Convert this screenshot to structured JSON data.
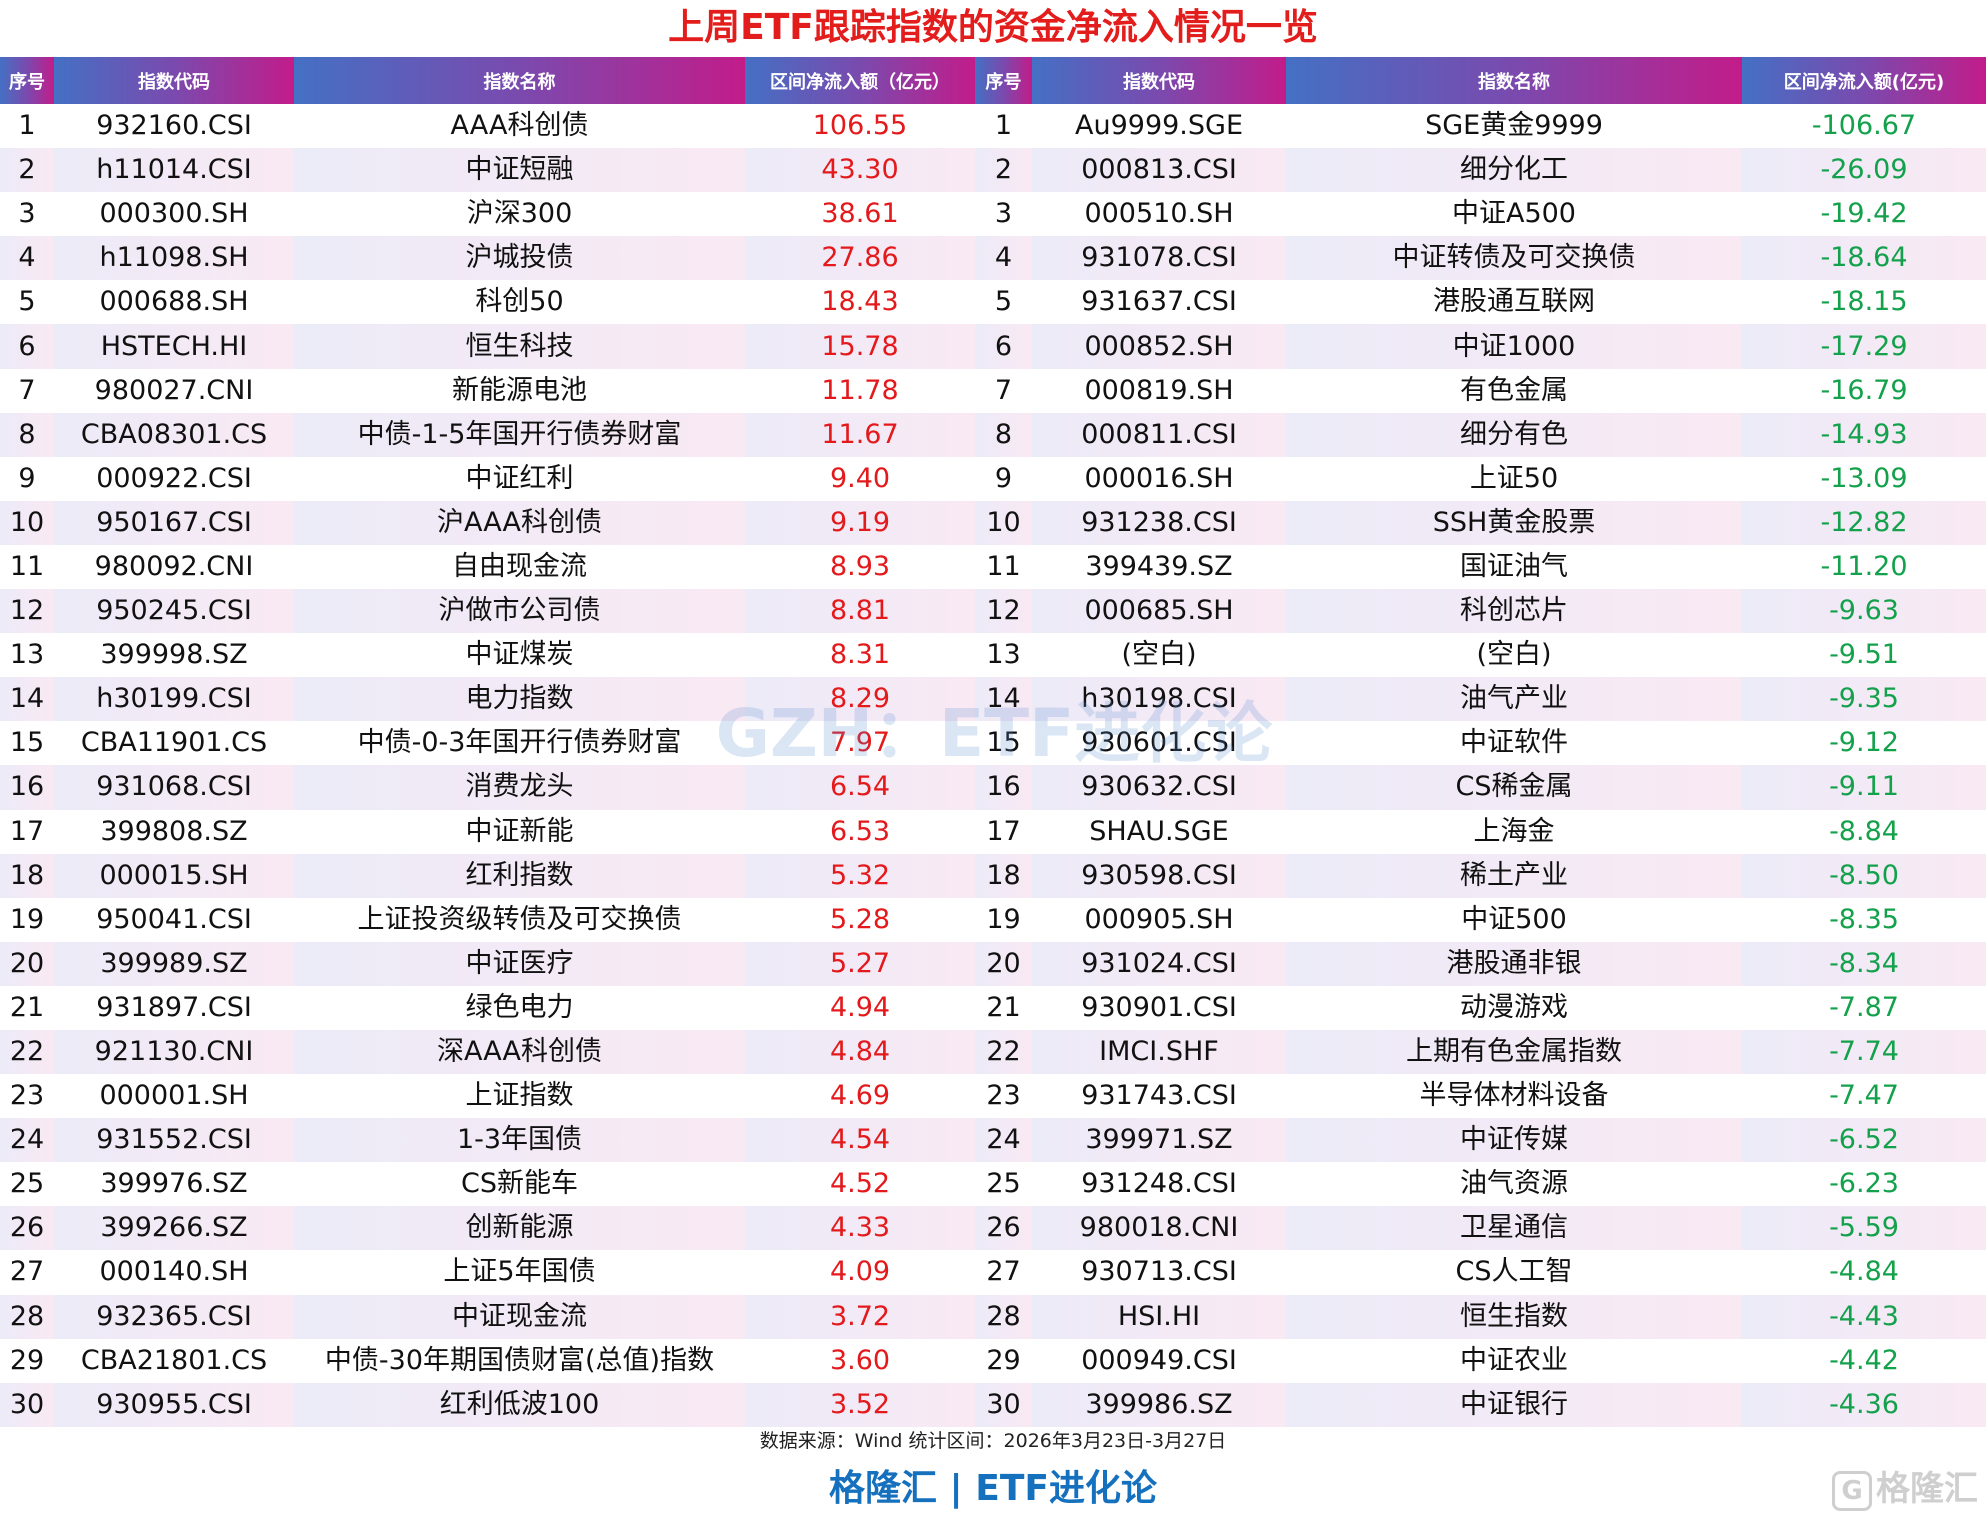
{
  "title": "上周ETF跟踪指数的资金净流入情况一览",
  "headers_left": [
    "序号",
    "指数代码",
    "指数名称",
    "区间净流入额（亿元）"
  ],
  "headers_right": [
    "序号",
    "指数代码",
    "指数名称",
    "区间净流入额(亿元)"
  ],
  "colors": {
    "positive": "#e3191c",
    "negative": "#13a14b",
    "title": "#e31c1c",
    "brand": "#1570bd"
  },
  "inflows": [
    {
      "rank": "1",
      "code": "932160.CSI",
      "name": "AAA科创债",
      "value": "106.55"
    },
    {
      "rank": "2",
      "code": "h11014.CSI",
      "name": "中证短融",
      "value": "43.30"
    },
    {
      "rank": "3",
      "code": "000300.SH",
      "name": "沪深300",
      "value": "38.61"
    },
    {
      "rank": "4",
      "code": "h11098.SH",
      "name": "沪城投债",
      "value": "27.86"
    },
    {
      "rank": "5",
      "code": "000688.SH",
      "name": "科创50",
      "value": "18.43"
    },
    {
      "rank": "6",
      "code": "HSTECH.HI",
      "name": "恒生科技",
      "value": "15.78"
    },
    {
      "rank": "7",
      "code": "980027.CNI",
      "name": "新能源电池",
      "value": "11.78"
    },
    {
      "rank": "8",
      "code": "CBA08301.CS",
      "name": "中债-1-5年国开行债券财富",
      "value": "11.67"
    },
    {
      "rank": "9",
      "code": "000922.CSI",
      "name": "中证红利",
      "value": "9.40"
    },
    {
      "rank": "10",
      "code": "950167.CSI",
      "name": "沪AAA科创债",
      "value": "9.19"
    },
    {
      "rank": "11",
      "code": "980092.CNI",
      "name": "自由现金流",
      "value": "8.93"
    },
    {
      "rank": "12",
      "code": "950245.CSI",
      "name": "沪做市公司债",
      "value": "8.81"
    },
    {
      "rank": "13",
      "code": "399998.SZ",
      "name": "中证煤炭",
      "value": "8.31"
    },
    {
      "rank": "14",
      "code": "h30199.CSI",
      "name": "电力指数",
      "value": "8.29"
    },
    {
      "rank": "15",
      "code": "CBA11901.CS",
      "name": "中债-0-3年国开行债券财富",
      "value": "7.97"
    },
    {
      "rank": "16",
      "code": "931068.CSI",
      "name": "消费龙头",
      "value": "6.54"
    },
    {
      "rank": "17",
      "code": "399808.SZ",
      "name": "中证新能",
      "value": "6.53"
    },
    {
      "rank": "18",
      "code": "000015.SH",
      "name": "红利指数",
      "value": "5.32"
    },
    {
      "rank": "19",
      "code": "950041.CSI",
      "name": "上证投资级转债及可交换债",
      "value": "5.28"
    },
    {
      "rank": "20",
      "code": "399989.SZ",
      "name": "中证医疗",
      "value": "5.27"
    },
    {
      "rank": "21",
      "code": "931897.CSI",
      "name": "绿色电力",
      "value": "4.94"
    },
    {
      "rank": "22",
      "code": "921130.CNI",
      "name": "深AAA科创债",
      "value": "4.84"
    },
    {
      "rank": "23",
      "code": "000001.SH",
      "name": "上证指数",
      "value": "4.69"
    },
    {
      "rank": "24",
      "code": "931552.CSI",
      "name": "1-3年国债",
      "value": "4.54"
    },
    {
      "rank": "25",
      "code": "399976.SZ",
      "name": "CS新能车",
      "value": "4.52"
    },
    {
      "rank": "26",
      "code": "399266.SZ",
      "name": "创新能源",
      "value": "4.33"
    },
    {
      "rank": "27",
      "code": "000140.SH",
      "name": "上证5年国债",
      "value": "4.09"
    },
    {
      "rank": "28",
      "code": "932365.CSI",
      "name": "中证现金流",
      "value": "3.72"
    },
    {
      "rank": "29",
      "code": "CBA21801.CS",
      "name": "中债-30年期国债财富(总值)指数",
      "value": "3.60"
    },
    {
      "rank": "30",
      "code": "930955.CSI",
      "name": "红利低波100",
      "value": "3.52"
    }
  ],
  "outflows": [
    {
      "rank": "1",
      "code": "Au9999.SGE",
      "name": "SGE黄金9999",
      "value": "-106.67"
    },
    {
      "rank": "2",
      "code": "000813.CSI",
      "name": "细分化工",
      "value": "-26.09"
    },
    {
      "rank": "3",
      "code": "000510.SH",
      "name": "中证A500",
      "value": "-19.42"
    },
    {
      "rank": "4",
      "code": "931078.CSI",
      "name": "中证转债及可交换债",
      "value": "-18.64"
    },
    {
      "rank": "5",
      "code": "931637.CSI",
      "name": "港股通互联网",
      "value": "-18.15"
    },
    {
      "rank": "6",
      "code": "000852.SH",
      "name": "中证1000",
      "value": "-17.29"
    },
    {
      "rank": "7",
      "code": "000819.SH",
      "name": "有色金属",
      "value": "-16.79"
    },
    {
      "rank": "8",
      "code": "000811.CSI",
      "name": "细分有色",
      "value": "-14.93"
    },
    {
      "rank": "9",
      "code": "000016.SH",
      "name": "上证50",
      "value": "-13.09"
    },
    {
      "rank": "10",
      "code": "931238.CSI",
      "name": "SSH黄金股票",
      "value": "-12.82"
    },
    {
      "rank": "11",
      "code": "399439.SZ",
      "name": "国证油气",
      "value": "-11.20"
    },
    {
      "rank": "12",
      "code": "000685.SH",
      "name": "科创芯片",
      "value": "-9.63"
    },
    {
      "rank": "13",
      "code": "(空白)",
      "name": "(空白)",
      "value": "-9.51"
    },
    {
      "rank": "14",
      "code": "h30198.CSI",
      "name": "油气产业",
      "value": "-9.35"
    },
    {
      "rank": "15",
      "code": "930601.CSI",
      "name": "中证软件",
      "value": "-9.12"
    },
    {
      "rank": "16",
      "code": "930632.CSI",
      "name": "CS稀金属",
      "value": "-9.11"
    },
    {
      "rank": "17",
      "code": "SHAU.SGE",
      "name": "上海金",
      "value": "-8.84"
    },
    {
      "rank": "18",
      "code": "930598.CSI",
      "name": "稀土产业",
      "value": "-8.50"
    },
    {
      "rank": "19",
      "code": "000905.SH",
      "name": "中证500",
      "value": "-8.35"
    },
    {
      "rank": "20",
      "code": "931024.CSI",
      "name": "港股通非银",
      "value": "-8.34"
    },
    {
      "rank": "21",
      "code": "930901.CSI",
      "name": "动漫游戏",
      "value": "-7.87"
    },
    {
      "rank": "22",
      "code": "IMCI.SHF",
      "name": "上期有色金属指数",
      "value": "-7.74"
    },
    {
      "rank": "23",
      "code": "931743.CSI",
      "name": "半导体材料设备",
      "value": "-7.47"
    },
    {
      "rank": "24",
      "code": "399971.SZ",
      "name": "中证传媒",
      "value": "-6.52"
    },
    {
      "rank": "25",
      "code": "931248.CSI",
      "name": "油气资源",
      "value": "-6.23"
    },
    {
      "rank": "26",
      "code": "980018.CNI",
      "name": "卫星通信",
      "value": "-5.59"
    },
    {
      "rank": "27",
      "code": "930713.CSI",
      "name": "CS人工智",
      "value": "-4.84"
    },
    {
      "rank": "28",
      "code": "HSI.HI",
      "name": "恒生指数",
      "value": "-4.43"
    },
    {
      "rank": "29",
      "code": "000949.CSI",
      "name": "中证农业",
      "value": "-4.42"
    },
    {
      "rank": "30",
      "code": "399986.SZ",
      "name": "中证银行",
      "value": "-4.36"
    }
  ],
  "watermark": "GZH：ETF进化论",
  "source": "数据来源：Wind 统计区间：2026年3月23日-3月27日",
  "brand": "格隆汇 | ETF进化论",
  "logo_text": "格隆汇",
  "logo_mark": "G"
}
